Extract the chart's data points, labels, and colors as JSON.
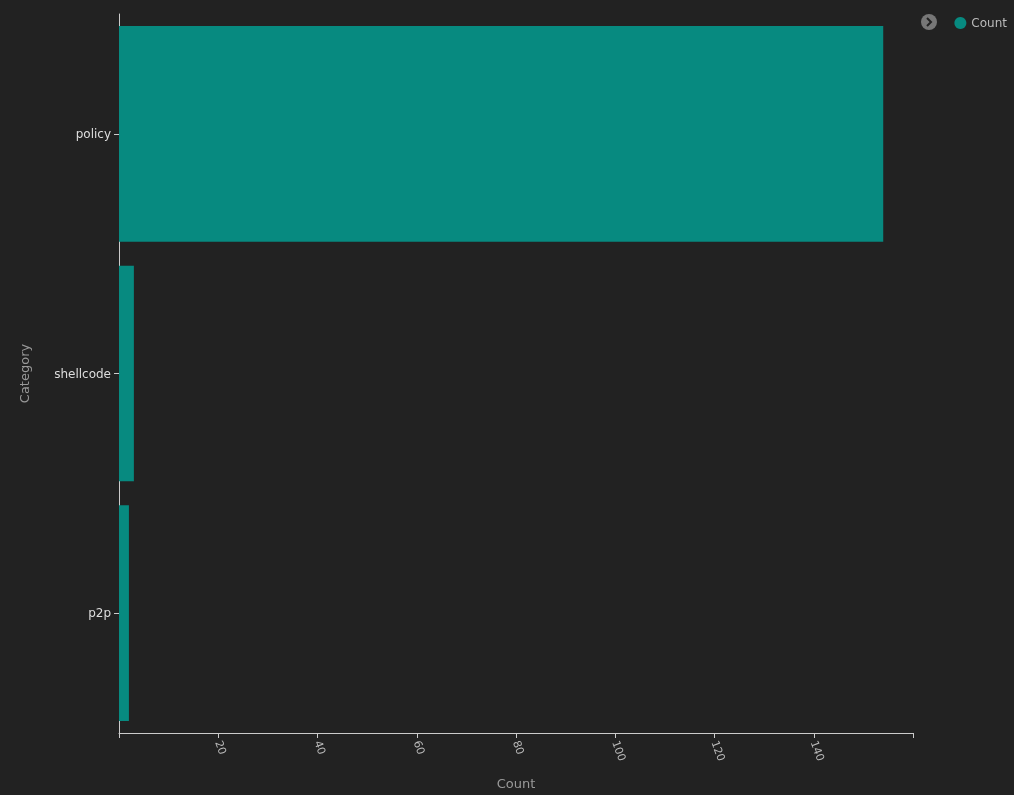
{
  "chart_data": {
    "type": "bar",
    "orientation": "horizontal",
    "xlabel": "Count",
    "ylabel": "Category",
    "categories": [
      "policy",
      "shellcode",
      "p2p"
    ],
    "series": [
      {
        "name": "Count",
        "color": "#078a80",
        "values": [
          154,
          3,
          2
        ]
      }
    ],
    "xlim": [
      0,
      160
    ],
    "xticks": [
      {
        "value": 0,
        "label": null
      },
      20,
      40,
      60,
      80,
      100,
      120,
      140,
      {
        "value": 160,
        "label": null
      }
    ],
    "grid": false,
    "legend": "top right"
  }
}
